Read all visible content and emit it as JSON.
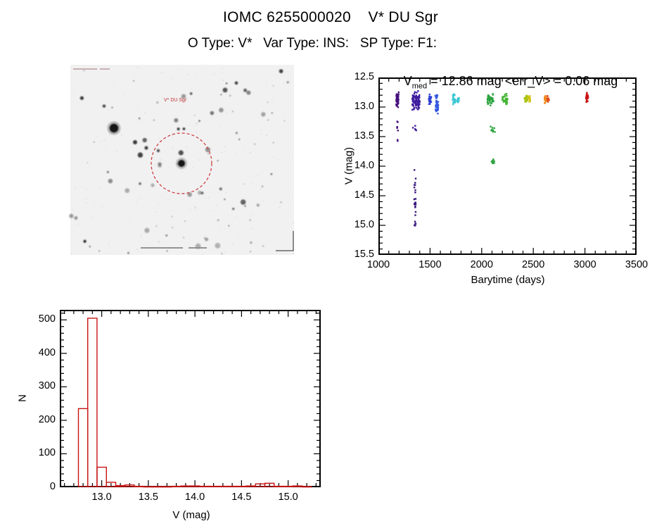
{
  "colors": {
    "accent_red": "#c81414",
    "dashed_circle": "#cc3333",
    "axis": "#000000"
  },
  "header": {
    "title": "IOMC 6255000020    V* DU Sgr",
    "subtitle": "O Type: V*   Var Type: INS:   SP Type: F1:"
  },
  "finder": {
    "target_label": "V* DU Sgr"
  },
  "lightcurve": {
    "title_v": "V",
    "title_sub": "med",
    "title_rest": " = 12.86 mag <err_V> = 0.06 mag",
    "xlabel": "Barytime (days)",
    "ylabel": "V (mag)",
    "x_ticks": [
      1000,
      1500,
      2000,
      2500,
      3000,
      3500
    ],
    "y_ticks": [
      12.5,
      13.0,
      13.5,
      14.0,
      14.5,
      15.0,
      15.5
    ]
  },
  "histogram": {
    "xlabel": "V (mag)",
    "ylabel": "N",
    "x_ticks": [
      13.0,
      13.5,
      14.0,
      14.5,
      15.0
    ],
    "y_ticks": [
      0,
      100,
      200,
      300,
      400,
      500
    ]
  },
  "chart_data": [
    {
      "type": "scatter",
      "title": "V_med = 12.86 mag <err_V> = 0.06 mag",
      "xlabel": "Barytime (days)",
      "ylabel": "V (mag)",
      "xlim": [
        1000,
        3500
      ],
      "ylim": [
        15.5,
        12.5
      ],
      "y_axis_inverted": true,
      "grid": false,
      "legend": "none",
      "median_v_mag": 12.86,
      "err_v_mag": 0.06,
      "clusters": [
        {
          "x": [
            1172,
            1196
          ],
          "v": [
            12.72,
            13.02
          ],
          "n": 55,
          "color": "#46107e"
        },
        {
          "x": [
            1178,
            1194
          ],
          "v": [
            13.24,
            13.42
          ],
          "n": 6,
          "color": "#46107e"
        },
        {
          "x": [
            1184,
            1190
          ],
          "v": [
            13.5,
            13.58
          ],
          "n": 2,
          "color": "#46107e"
        },
        {
          "x": [
            1328,
            1402
          ],
          "v": [
            12.72,
            13.06
          ],
          "n": 90,
          "color": "#3f1d9e"
        },
        {
          "x": [
            1334,
            1366
          ],
          "v": [
            13.28,
            13.42
          ],
          "n": 5,
          "color": "#3f1d9e"
        },
        {
          "x": [
            1346,
            1362
          ],
          "v": [
            13.9,
            15.25
          ],
          "n": 26,
          "color": "#38157f"
        },
        {
          "x": [
            1488,
            1512
          ],
          "v": [
            12.78,
            12.98
          ],
          "n": 28,
          "color": "#2d3fd4"
        },
        {
          "x": [
            1550,
            1580
          ],
          "v": [
            12.76,
            13.12
          ],
          "n": 38,
          "color": "#3558e0"
        },
        {
          "x": [
            1716,
            1744
          ],
          "v": [
            12.78,
            12.96
          ],
          "n": 26,
          "color": "#38c6d4"
        },
        {
          "x": [
            1760,
            1782
          ],
          "v": [
            12.8,
            12.95
          ],
          "n": 14,
          "color": "#38c6d4"
        },
        {
          "x": [
            2056,
            2114
          ],
          "v": [
            12.76,
            12.98
          ],
          "n": 42,
          "color": "#2ba33e"
        },
        {
          "x": [
            2084,
            2132
          ],
          "v": [
            13.28,
            13.47
          ],
          "n": 9,
          "color": "#2ba33e"
        },
        {
          "x": [
            2096,
            2128
          ],
          "v": [
            13.85,
            14.0
          ],
          "n": 10,
          "color": "#2ba33e"
        },
        {
          "x": [
            2196,
            2250
          ],
          "v": [
            12.76,
            13.0
          ],
          "n": 34,
          "color": "#43b332"
        },
        {
          "x": [
            2414,
            2444
          ],
          "v": [
            12.79,
            12.94
          ],
          "n": 20,
          "color": "#a8c414"
        },
        {
          "x": [
            2452,
            2470
          ],
          "v": [
            12.8,
            12.93
          ],
          "n": 12,
          "color": "#d2c410"
        },
        {
          "x": [
            2604,
            2626
          ],
          "v": [
            12.77,
            12.96
          ],
          "n": 18,
          "color": "#ef8818"
        },
        {
          "x": [
            2636,
            2654
          ],
          "v": [
            12.8,
            12.95
          ],
          "n": 10,
          "color": "#e2481c"
        },
        {
          "x": [
            3010,
            3032
          ],
          "v": [
            12.74,
            12.96
          ],
          "n": 22,
          "color": "#c81414"
        }
      ]
    },
    {
      "type": "bar",
      "subtype": "histogram",
      "xlabel": "V (mag)",
      "ylabel": "N",
      "xlim": [
        12.55,
        15.35
      ],
      "ylim": [
        0,
        530
      ],
      "bin_start": 12.75,
      "bin_width": 0.1,
      "color": "#c81414",
      "counts": [
        235,
        505,
        60,
        15,
        5,
        7,
        3,
        2,
        2,
        2,
        3,
        4,
        4,
        3,
        3,
        3,
        3,
        3,
        4,
        10,
        12,
        3,
        3,
        4,
        2
      ]
    }
  ]
}
